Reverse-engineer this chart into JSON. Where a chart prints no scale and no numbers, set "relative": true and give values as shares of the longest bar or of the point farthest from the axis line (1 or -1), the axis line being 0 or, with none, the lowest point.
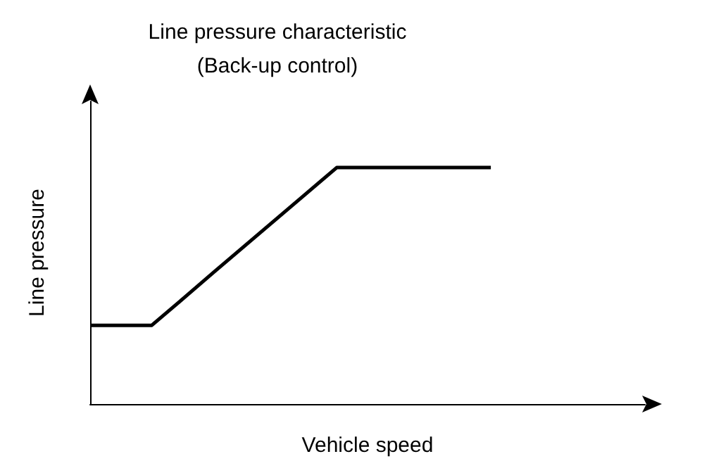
{
  "chart_data": {
    "type": "line",
    "title": "Line pressure characteristic\n(Back-up control)",
    "xlabel": "Vehicle speed",
    "ylabel": "Line pressure",
    "relative": true,
    "categories": [
      null,
      null,
      null,
      null,
      null,
      null,
      null,
      null,
      null,
      null,
      null,
      null,
      null,
      null,
      null,
      null,
      null,
      null,
      null
    ],
    "series": [
      {
        "color": "#000000",
        "values": [
          0.333,
          0.333,
          0.333,
          0.444,
          0.556,
          0.667,
          0.778,
          0.889,
          1,
          1,
          1,
          1,
          1,
          1,
          null,
          null,
          null,
          null,
          null
        ]
      }
    ],
    "grid": false,
    "marker": "none",
    "line_style": "solid"
  }
}
